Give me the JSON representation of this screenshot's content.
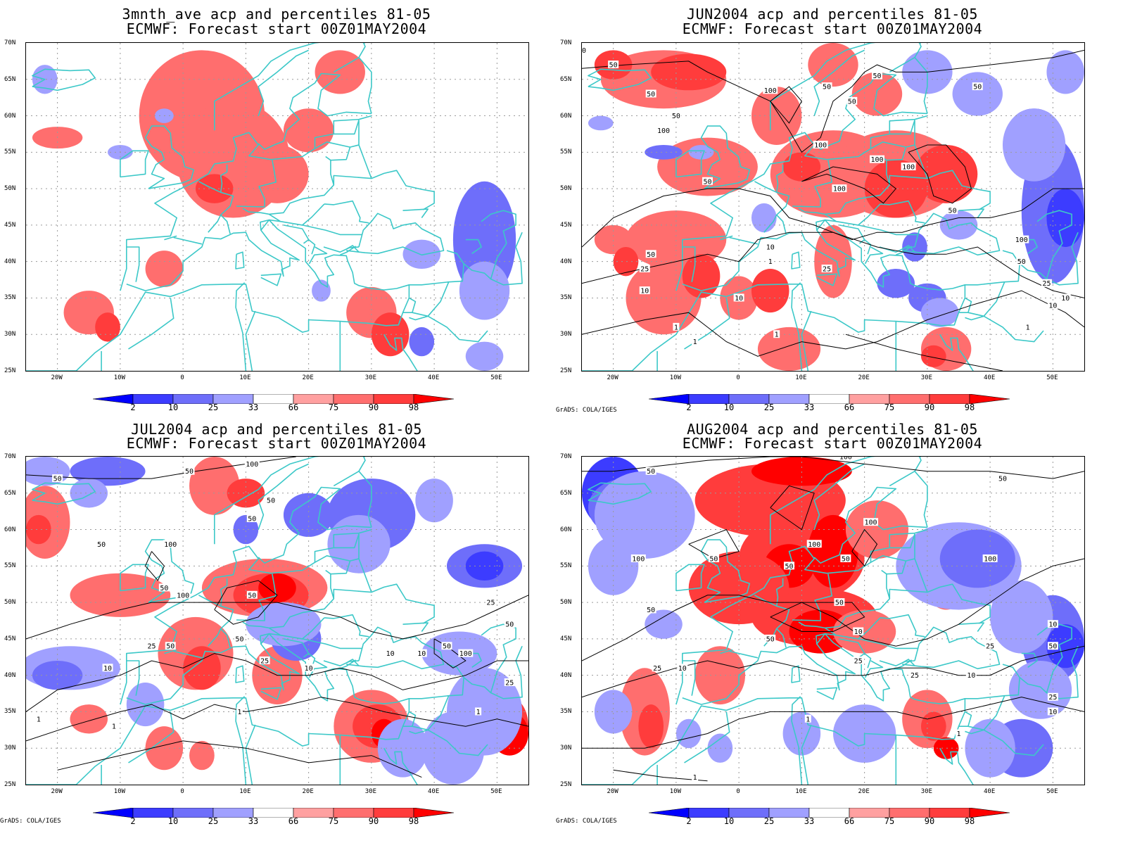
{
  "panels": [
    {
      "title1": "3mnth_ave acp and percentiles 81-05",
      "title2": "ECMWF: Forecast start 00Z01MAY2004",
      "credit": ""
    },
    {
      "title1": "JUN2004 acp and percentiles 81-05",
      "title2": "ECMWF: Forecast start 00Z01MAY2004",
      "credit": "GrADS: COLA/IGES"
    },
    {
      "title1": "JUL2004 acp and percentiles 81-05",
      "title2": "ECMWF: Forecast start 00Z01MAY2004",
      "credit": "GrADS: COLA/IGES"
    },
    {
      "title1": "AUG2004 acp and percentiles 81-05",
      "title2": "ECMWF: Forecast start 00Z01MAY2004",
      "credit": "GrADS: COLA/IGES"
    }
  ],
  "lat_labels": [
    "70N",
    "65N",
    "60N",
    "55N",
    "50N",
    "45N",
    "40N",
    "35N",
    "30N",
    "25N"
  ],
  "lon_labels": [
    "20W",
    "10W",
    "0",
    "10E",
    "20E",
    "30E",
    "40E",
    "50E"
  ],
  "colorbar": {
    "labels": [
      "2",
      "10",
      "25",
      "33",
      "66",
      "75",
      "90",
      "98"
    ],
    "colors": [
      "#0000ff",
      "#3c3cff",
      "#6e6efa",
      "#a0a0ff",
      "#ffffff",
      "#ffa0a0",
      "#ff6e6e",
      "#ff3c3c",
      "#ff0000"
    ]
  },
  "contour_labels": {
    "p1": [
      "50",
      "50",
      "50",
      "100",
      "50",
      "50",
      "50",
      "50",
      "100",
      "50",
      "100",
      "100",
      "100",
      "100",
      "50",
      "50",
      "10",
      "50",
      "25",
      "25",
      "10",
      "10",
      "1",
      "1",
      "1",
      "100",
      "50",
      "25",
      "10",
      "10",
      "1",
      "1"
    ],
    "p2": [
      "50",
      "50",
      "100",
      "50",
      "50",
      "100",
      "50",
      "50",
      "100",
      "50",
      "25",
      "50",
      "50",
      "10",
      "10",
      "10",
      "50",
      "25",
      "10",
      "100",
      "25",
      "1",
      "1",
      "1",
      "1",
      "50",
      "25",
      "10"
    ],
    "p3": [
      "50",
      "100",
      "50",
      "50",
      "100",
      "50",
      "100",
      "100",
      "50",
      "100",
      "50",
      "10",
      "25",
      "50",
      "50",
      "10",
      "25",
      "25",
      "10",
      "10",
      "50",
      "25",
      "1",
      "1",
      "1",
      "25",
      "10"
    ]
  },
  "colors": {
    "coast": "#3cc8c8",
    "contour": "#000000",
    "grid": "#9a9a9a"
  }
}
